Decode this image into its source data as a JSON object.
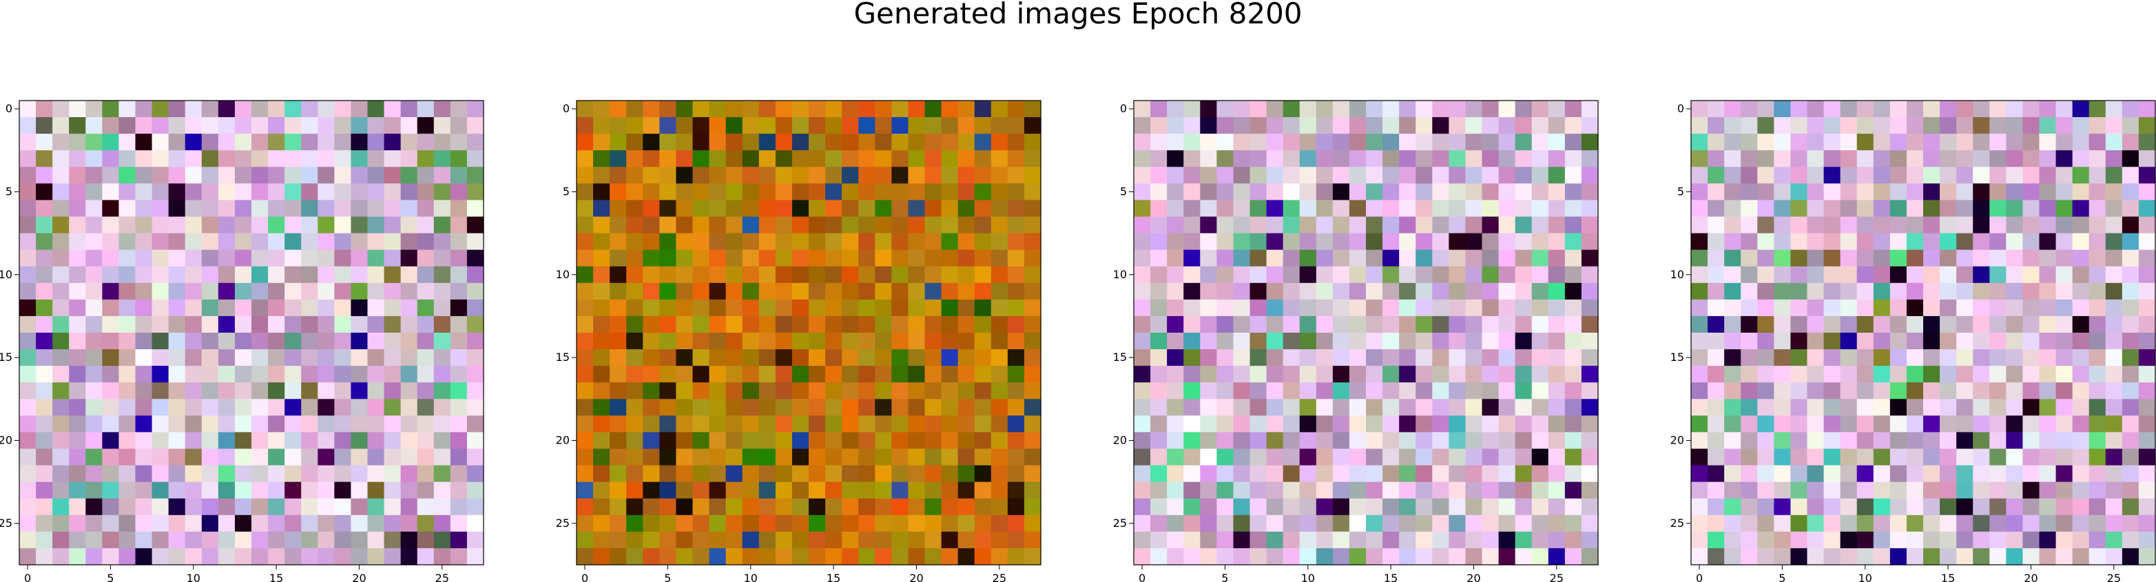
{
  "figure_title": "Generated images Epoch 8200",
  "chart_data": [
    {
      "type": "heatmap",
      "grid_size": [
        28,
        28
      ],
      "palette": "pastel-magenta",
      "xticks": [
        "0",
        "5",
        "10",
        "15",
        "20",
        "25"
      ],
      "yticks": [
        "0",
        "5",
        "10",
        "15",
        "20",
        "25"
      ],
      "xlim": [
        -0.5,
        27.5
      ],
      "ylim": [
        27.5,
        -0.5
      ]
    },
    {
      "type": "heatmap",
      "grid_size": [
        28,
        28
      ],
      "palette": "ochre",
      "xticks": [
        "0",
        "5",
        "10",
        "15",
        "20",
        "25"
      ],
      "yticks": [
        "0",
        "5",
        "10",
        "15",
        "20",
        "25"
      ],
      "xlim": [
        -0.5,
        27.5
      ],
      "ylim": [
        27.5,
        -0.5
      ]
    },
    {
      "type": "heatmap",
      "grid_size": [
        28,
        28
      ],
      "palette": "pastel-magenta",
      "xticks": [
        "0",
        "5",
        "10",
        "15",
        "20",
        "25"
      ],
      "yticks": [
        "0",
        "5",
        "10",
        "15",
        "20",
        "25"
      ],
      "xlim": [
        -0.5,
        27.5
      ],
      "ylim": [
        27.5,
        -0.5
      ]
    },
    {
      "type": "heatmap",
      "grid_size": [
        28,
        28
      ],
      "palette": "pastel-magenta",
      "xticks": [
        "0",
        "5",
        "10",
        "15",
        "20",
        "25"
      ],
      "yticks": [
        "0",
        "5",
        "10",
        "15",
        "20",
        "25"
      ],
      "xlim": [
        -0.5,
        27.5
      ],
      "ylim": [
        27.5,
        -0.5
      ]
    }
  ]
}
